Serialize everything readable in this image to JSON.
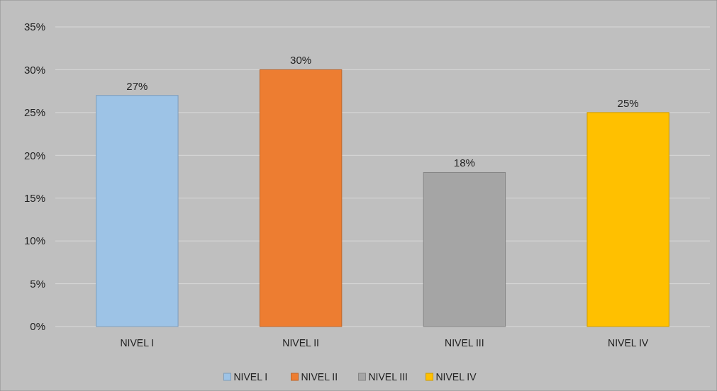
{
  "chart_data": {
    "type": "bar",
    "categories": [
      "NIVEL I",
      "NIVEL II",
      "NIVEL III",
      "NIVEL IV"
    ],
    "stacked": true,
    "series": [
      {
        "name": "NIVEL I",
        "color": "#9dc3e6",
        "values": [
          27,
          null,
          null,
          null
        ],
        "value_labels": [
          "27%",
          null,
          null,
          null
        ]
      },
      {
        "name": "NIVEL II",
        "color": "#ed7d31",
        "values": [
          null,
          30,
          null,
          null
        ],
        "value_labels": [
          null,
          "30%",
          null,
          null
        ]
      },
      {
        "name": "NIVEL III",
        "color": "#a5a5a5",
        "values": [
          null,
          null,
          18,
          null
        ],
        "value_labels": [
          null,
          null,
          "18%",
          null
        ]
      },
      {
        "name": "NIVEL IV",
        "color": "#ffc000",
        "values": [
          null,
          null,
          null,
          25
        ],
        "value_labels": [
          null,
          null,
          null,
          "25%"
        ]
      }
    ],
    "ylim": [
      0,
      35
    ],
    "yticks": [
      {
        "value": 0,
        "label": "0%"
      },
      {
        "value": 5,
        "label": "5%"
      },
      {
        "value": 10,
        "label": "10%"
      },
      {
        "value": 15,
        "label": "15%"
      },
      {
        "value": 20,
        "label": "20%"
      },
      {
        "value": 25,
        "label": "25%"
      },
      {
        "value": 30,
        "label": "30%"
      },
      {
        "value": 35,
        "label": "35%"
      }
    ],
    "grid": "y",
    "legend": "bottom"
  }
}
